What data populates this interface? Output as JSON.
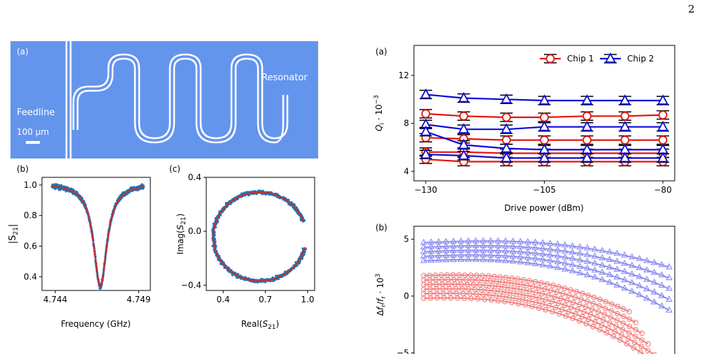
{
  "page_number": "2",
  "panel_a_left": {
    "label": "(a)",
    "feedline_label": "Feedline",
    "resonator_label": "Resonator",
    "scalebar_label": "100 μm",
    "colors": {
      "chip": "#6495ed",
      "line": "#ffffff"
    }
  },
  "chart_data": [
    {
      "id": "b-left",
      "label": "(b)",
      "type": "scatter",
      "xlabel": "Frequency (GHz)",
      "ylabel": "|S21|",
      "xticks": [
        "4.744",
        "4.749"
      ],
      "yticks": [
        "0.4",
        "0.6",
        "0.8",
        "1.0"
      ],
      "xlim": [
        4.7432,
        4.7497
      ],
      "ylim": [
        0.31,
        1.05
      ],
      "fit": {
        "f0": 4.7467,
        "min": 0.335,
        "max": 1.01,
        "hwhm": 0.00048
      },
      "colors": {
        "data": "#1f77b4",
        "fit": "#d62728"
      }
    },
    {
      "id": "c",
      "label": "(c)",
      "type": "scatter",
      "xlabel": "Real(S21)",
      "ylabel": "Imag(S21)",
      "xticks": [
        "0.4",
        "0.7",
        "1.0"
      ],
      "yticks": [
        "-0.4",
        "0.0",
        "0.4"
      ],
      "xlim": [
        0.28,
        1.05
      ],
      "ylim": [
        -0.44,
        0.4
      ],
      "circle": {
        "cx": 0.66,
        "cy": -0.04,
        "r": 0.33,
        "start_deg": 20,
        "end_deg": 345
      },
      "colors": {
        "data": "#1f77b4",
        "fit": "#d62728"
      }
    },
    {
      "id": "a-right",
      "label": "(a)",
      "type": "line",
      "xlabel": "Drive power (dBm)",
      "ylabel": "Qi · 10^-3",
      "xticks": [
        "-130",
        "-105",
        "-80"
      ],
      "yticks": [
        "4",
        "8",
        "12"
      ],
      "xlim": [
        -132.5,
        -77.5
      ],
      "ylim": [
        3.2,
        14.5
      ],
      "x": [
        -130,
        -122,
        -113,
        -105,
        -96,
        -88,
        -80
      ],
      "legend": {
        "position": "top-right"
      },
      "series": [
        {
          "name": "Chip 1",
          "color": "#e8120c",
          "marker": "circle",
          "curves": [
            [
              8.8,
              8.6,
              8.5,
              8.5,
              8.6,
              8.6,
              8.7
            ],
            [
              6.8,
              6.7,
              6.6,
              6.6,
              6.6,
              6.6,
              6.6
            ],
            [
              5.6,
              5.6,
              5.5,
              5.5,
              5.5,
              5.5,
              5.5
            ],
            [
              5.0,
              4.8,
              4.8,
              4.8,
              4.8,
              4.8,
              4.8
            ]
          ]
        },
        {
          "name": "Chip 2",
          "color": "#0a0ad8",
          "marker": "triangle",
          "curves": [
            [
              10.4,
              10.1,
              10.0,
              9.9,
              9.9,
              9.9,
              9.9
            ],
            [
              7.9,
              7.5,
              7.5,
              7.7,
              7.7,
              7.7,
              7.7
            ],
            [
              7.3,
              6.2,
              5.9,
              5.8,
              5.8,
              5.8,
              5.8
            ],
            [
              5.4,
              5.3,
              5.1,
              5.1,
              5.1,
              5.1,
              5.1
            ]
          ]
        }
      ]
    },
    {
      "id": "b-right",
      "label": "(b)",
      "type": "line",
      "ylabel": "Δfr/fr · 10^3",
      "yticks": [
        "-5",
        "0",
        "5"
      ],
      "ylim": [
        -5.6,
        5.6
      ],
      "series": [
        {
          "name": "",
          "color": "#6666ee",
          "marker": "triangle",
          "start_offsets": [
            4.7,
            4.3,
            3.9,
            3.5,
            3.1
          ]
        },
        {
          "name": "",
          "color": "#ee5555",
          "marker": "circle",
          "start_offsets": [
            1.8,
            1.4,
            1.0,
            0.6,
            0.2,
            -0.2
          ]
        }
      ]
    }
  ]
}
